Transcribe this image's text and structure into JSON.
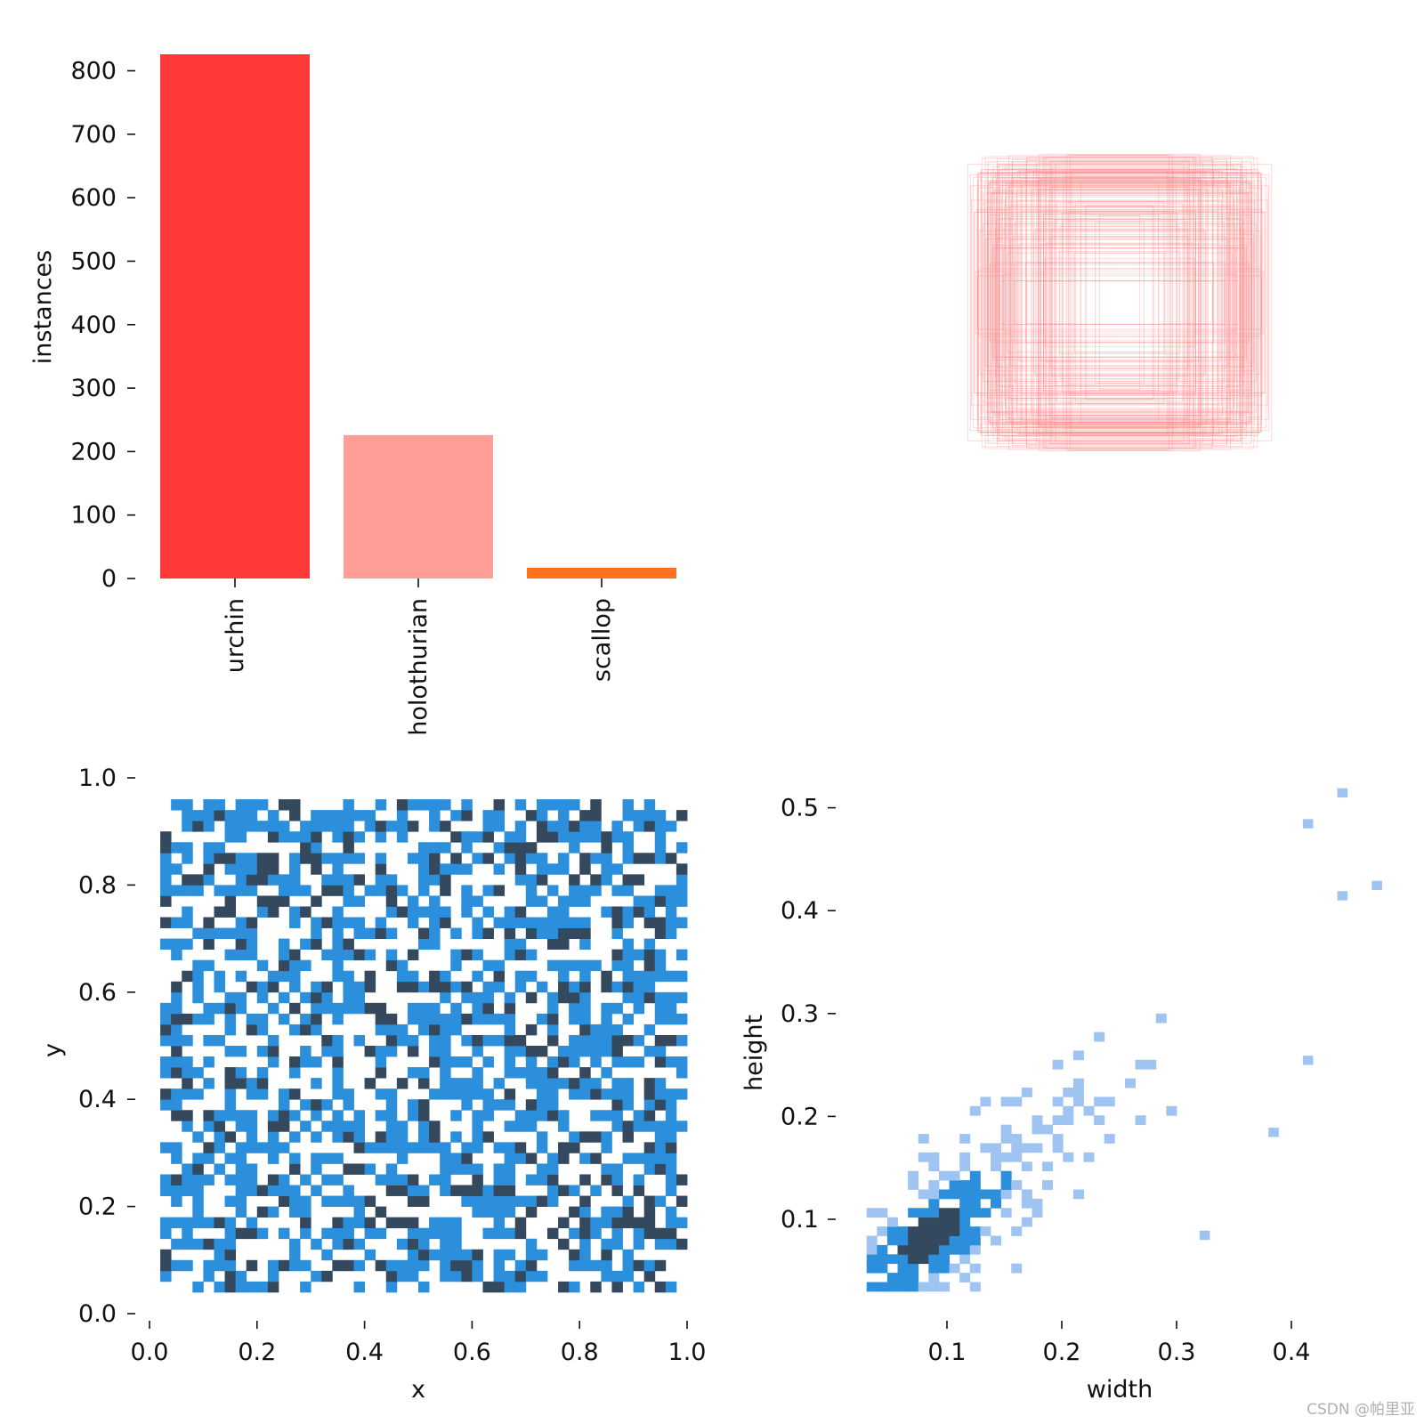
{
  "colors": {
    "urchin": "#ff3838",
    "holothurian": "#ff9d97",
    "scallop": "#ff701f",
    "hist_light": "#9fc4f2",
    "hist_mid": "#2b8fdc",
    "hist_dark": "#34495e",
    "box_stroke": "#ff7a7a"
  },
  "watermark": "CSDN @帕里亚",
  "chart_data": [
    {
      "type": "bar",
      "ylabel": "instances",
      "xlabel": "",
      "categories": [
        "urchin",
        "holothurian",
        "scallop"
      ],
      "values": [
        826,
        226,
        17
      ],
      "ylim": [
        0,
        826
      ],
      "yticks": [
        "0",
        "100",
        "200",
        "300",
        "400",
        "500",
        "600",
        "700",
        "800"
      ],
      "legend": "none"
    },
    {
      "type": "other",
      "description_of_content": "overlaid label boxes centered",
      "x_axis": "none",
      "y_axis": "none"
    },
    {
      "type": "heatmap",
      "xlabel": "x",
      "ylabel": "y",
      "xlim": [
        0,
        1
      ],
      "ylim": [
        0,
        1
      ],
      "xticks": [
        "0.0",
        "0.2",
        "0.4",
        "0.6",
        "0.8",
        "1.0"
      ],
      "yticks": [
        "0.0",
        "0.2",
        "0.4",
        "0.6",
        "0.8",
        "1.0"
      ],
      "bins": 50,
      "occupied_range": {
        "x": [
          0.02,
          0.98
        ],
        "y": [
          0.03,
          0.95
        ]
      },
      "grid": false
    },
    {
      "type": "heatmap",
      "xlabel": "width",
      "ylabel": "height",
      "xlim": [
        0.0,
        0.48
      ],
      "ylim": [
        0.03,
        0.52
      ],
      "xticks": [
        "0.1",
        "0.2",
        "0.3",
        "0.4"
      ],
      "yticks": [
        "0.1",
        "0.2",
        "0.3",
        "0.4",
        "0.5"
      ],
      "density_peak": {
        "width": 0.08,
        "height": 0.08
      },
      "outliers": [
        [
          0.41,
          0.48
        ],
        [
          0.44,
          0.51
        ],
        [
          0.47,
          0.42
        ],
        [
          0.44,
          0.41
        ],
        [
          0.41,
          0.25
        ],
        [
          0.38,
          0.18
        ],
        [
          0.32,
          0.08
        ]
      ],
      "grid": false
    }
  ]
}
